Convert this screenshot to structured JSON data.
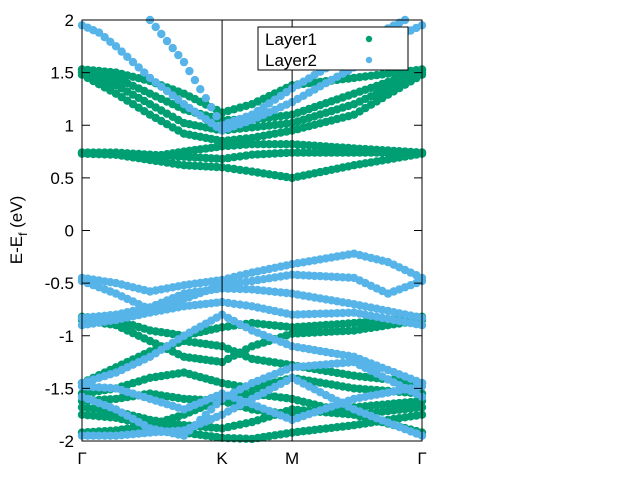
{
  "chart_data": {
    "type": "scatter",
    "title": "",
    "ylabel": "E-E",
    "ylabel_sub": "f",
    "ylabel_unit": " (eV)",
    "ylim": [
      -2,
      2
    ],
    "yticks": [
      {
        "v": 2,
        "label": "2"
      },
      {
        "v": 1.5,
        "label": "1.5"
      },
      {
        "v": 1,
        "label": "1"
      },
      {
        "v": 0.5,
        "label": "0.5"
      },
      {
        "v": 0,
        "label": "0"
      },
      {
        "v": -0.5,
        "label": "-0.5"
      },
      {
        "v": -1,
        "label": "-1"
      },
      {
        "v": -1.5,
        "label": "-1.5"
      },
      {
        "v": -2,
        "label": "-2"
      }
    ],
    "kpoints": [
      {
        "pos": 0.0,
        "label": "Γ"
      },
      {
        "pos": 0.412,
        "label": "K"
      },
      {
        "pos": 0.618,
        "label": "M"
      },
      {
        "pos": 1.0,
        "label": "Γ"
      }
    ],
    "legend": {
      "position": "top-right"
    },
    "series": [
      {
        "name": "Layer1",
        "color": "#009e73",
        "bands": [
          [
            [
              0.0,
              1.53
            ],
            [
              0.1,
              1.5
            ],
            [
              0.2,
              1.42
            ],
            [
              0.3,
              1.3
            ],
            [
              0.412,
              1.12
            ],
            [
              0.5,
              1.2
            ],
            [
              0.618,
              1.38
            ],
            [
              0.8,
              1.45
            ],
            [
              1.0,
              1.53
            ]
          ],
          [
            [
              0.0,
              1.52
            ],
            [
              0.1,
              1.45
            ],
            [
              0.2,
              1.3
            ],
            [
              0.3,
              1.15
            ],
            [
              0.412,
              1.05
            ],
            [
              0.5,
              1.05
            ],
            [
              0.618,
              1.1
            ],
            [
              0.8,
              1.3
            ],
            [
              1.0,
              1.52
            ]
          ],
          [
            [
              0.0,
              1.5
            ],
            [
              0.1,
              1.38
            ],
            [
              0.2,
              1.2
            ],
            [
              0.3,
              1.02
            ],
            [
              0.412,
              0.95
            ],
            [
              0.5,
              0.98
            ],
            [
              0.618,
              1.02
            ],
            [
              0.8,
              1.2
            ],
            [
              1.0,
              1.5
            ]
          ],
          [
            [
              0.0,
              1.48
            ],
            [
              0.1,
              1.3
            ],
            [
              0.2,
              1.1
            ],
            [
              0.3,
              0.92
            ],
            [
              0.412,
              0.85
            ],
            [
              0.5,
              0.88
            ],
            [
              0.618,
              0.95
            ],
            [
              0.8,
              1.1
            ],
            [
              1.0,
              1.48
            ]
          ],
          [
            [
              0.0,
              0.74
            ],
            [
              0.1,
              0.74
            ],
            [
              0.2,
              0.72
            ],
            [
              0.3,
              0.7
            ],
            [
              0.412,
              0.68
            ],
            [
              0.5,
              0.72
            ],
            [
              0.618,
              0.74
            ],
            [
              0.8,
              0.74
            ],
            [
              1.0,
              0.74
            ]
          ],
          [
            [
              0.0,
              0.73
            ],
            [
              0.1,
              0.72
            ],
            [
              0.2,
              0.67
            ],
            [
              0.3,
              0.62
            ],
            [
              0.412,
              0.6
            ],
            [
              0.5,
              0.56
            ],
            [
              0.618,
              0.5
            ],
            [
              0.8,
              0.62
            ],
            [
              1.0,
              0.73
            ]
          ],
          [
            [
              0.0,
              0.74
            ],
            [
              0.1,
              0.72
            ],
            [
              0.2,
              0.7
            ],
            [
              0.3,
              0.75
            ],
            [
              0.412,
              0.8
            ],
            [
              0.5,
              0.82
            ],
            [
              0.618,
              0.82
            ],
            [
              0.8,
              0.78
            ],
            [
              1.0,
              0.74
            ]
          ],
          [
            [
              0.0,
              -0.82
            ],
            [
              0.1,
              -0.85
            ],
            [
              0.2,
              -0.95
            ],
            [
              0.3,
              -1.0
            ],
            [
              0.412,
              -0.92
            ],
            [
              0.5,
              -0.88
            ],
            [
              0.618,
              -0.92
            ],
            [
              0.8,
              -0.88
            ],
            [
              1.0,
              -0.82
            ]
          ],
          [
            [
              0.0,
              -0.85
            ],
            [
              0.1,
              -0.9
            ],
            [
              0.2,
              -1.05
            ],
            [
              0.3,
              -1.2
            ],
            [
              0.412,
              -1.25
            ],
            [
              0.5,
              -1.1
            ],
            [
              0.618,
              -0.98
            ],
            [
              0.8,
              -0.95
            ],
            [
              1.0,
              -0.85
            ]
          ],
          [
            [
              0.0,
              -1.45
            ],
            [
              0.1,
              -1.3
            ],
            [
              0.2,
              -1.15
            ],
            [
              0.3,
              -1.05
            ],
            [
              0.412,
              -1.1
            ],
            [
              0.5,
              -1.22
            ],
            [
              0.618,
              -1.28
            ],
            [
              0.8,
              -1.38
            ],
            [
              1.0,
              -1.45
            ]
          ],
          [
            [
              0.0,
              -1.55
            ],
            [
              0.1,
              -1.5
            ],
            [
              0.2,
              -1.4
            ],
            [
              0.3,
              -1.35
            ],
            [
              0.412,
              -1.45
            ],
            [
              0.5,
              -1.5
            ],
            [
              0.618,
              -1.4
            ],
            [
              0.8,
              -1.5
            ],
            [
              1.0,
              -1.55
            ]
          ],
          [
            [
              0.0,
              -1.62
            ],
            [
              0.1,
              -1.6
            ],
            [
              0.2,
              -1.55
            ],
            [
              0.3,
              -1.6
            ],
            [
              0.412,
              -1.62
            ],
            [
              0.5,
              -1.7
            ],
            [
              0.618,
              -1.75
            ],
            [
              0.8,
              -1.68
            ],
            [
              1.0,
              -1.62
            ]
          ],
          [
            [
              0.0,
              -1.68
            ],
            [
              0.1,
              -1.72
            ],
            [
              0.2,
              -1.8
            ],
            [
              0.3,
              -1.85
            ],
            [
              0.412,
              -1.88
            ],
            [
              0.5,
              -1.82
            ],
            [
              0.618,
              -1.7
            ],
            [
              0.8,
              -1.75
            ],
            [
              1.0,
              -1.68
            ]
          ],
          [
            [
              0.0,
              -1.75
            ],
            [
              0.1,
              -1.78
            ],
            [
              0.2,
              -1.85
            ],
            [
              0.3,
              -1.92
            ],
            [
              0.412,
              -1.97
            ],
            [
              0.5,
              -1.98
            ],
            [
              0.618,
              -1.92
            ],
            [
              0.8,
              -1.85
            ],
            [
              1.0,
              -1.75
            ]
          ],
          [
            [
              0.0,
              -1.92
            ],
            [
              0.1,
              -1.9
            ],
            [
              0.2,
              -1.85
            ],
            [
              0.3,
              -1.75
            ],
            [
              0.412,
              -1.6
            ],
            [
              0.5,
              -1.55
            ],
            [
              0.618,
              -1.6
            ],
            [
              0.8,
              -1.75
            ],
            [
              1.0,
              -1.92
            ]
          ]
        ]
      },
      {
        "name": "Layer2",
        "color": "#56b4e9",
        "bands": [
          [
            [
              0.0,
              1.95
            ],
            [
              0.05,
              1.88
            ],
            [
              0.1,
              1.75
            ],
            [
              0.2,
              1.45
            ],
            [
              0.3,
              1.2
            ],
            [
              0.412,
              0.95
            ],
            [
              0.5,
              1.05
            ],
            [
              0.618,
              1.22
            ],
            [
              0.8,
              1.55
            ],
            [
              0.9,
              1.8
            ],
            [
              1.0,
              1.95
            ]
          ],
          [
            [
              0.2,
              2.0
            ],
            [
              0.3,
              1.6
            ],
            [
              0.412,
              1.0
            ],
            [
              0.5,
              1.1
            ],
            [
              0.618,
              1.35
            ],
            [
              0.8,
              1.7
            ],
            [
              0.9,
              1.92
            ],
            [
              0.95,
              2.0
            ]
          ],
          [
            [
              0.0,
              -0.45
            ],
            [
              0.1,
              -0.5
            ],
            [
              0.2,
              -0.58
            ],
            [
              0.3,
              -0.52
            ],
            [
              0.412,
              -0.47
            ],
            [
              0.5,
              -0.4
            ],
            [
              0.618,
              -0.32
            ],
            [
              0.8,
              -0.22
            ],
            [
              0.9,
              -0.3
            ],
            [
              1.0,
              -0.45
            ]
          ],
          [
            [
              0.0,
              -0.48
            ],
            [
              0.1,
              -0.6
            ],
            [
              0.2,
              -0.75
            ],
            [
              0.3,
              -0.65
            ],
            [
              0.412,
              -0.52
            ],
            [
              0.5,
              -0.48
            ],
            [
              0.618,
              -0.42
            ],
            [
              0.8,
              -0.45
            ],
            [
              0.9,
              -0.6
            ],
            [
              1.0,
              -0.48
            ]
          ],
          [
            [
              0.0,
              -0.83
            ],
            [
              0.1,
              -0.8
            ],
            [
              0.2,
              -0.73
            ],
            [
              0.3,
              -0.6
            ],
            [
              0.412,
              -0.55
            ],
            [
              0.5,
              -0.56
            ],
            [
              0.618,
              -0.6
            ],
            [
              0.8,
              -0.7
            ],
            [
              1.0,
              -0.83
            ]
          ],
          [
            [
              0.0,
              -0.9
            ],
            [
              0.1,
              -0.85
            ],
            [
              0.2,
              -0.78
            ],
            [
              0.3,
              -0.72
            ],
            [
              0.412,
              -0.68
            ],
            [
              0.5,
              -0.72
            ],
            [
              0.618,
              -0.8
            ],
            [
              0.8,
              -0.78
            ],
            [
              1.0,
              -0.9
            ]
          ],
          [
            [
              0.0,
              -1.45
            ],
            [
              0.1,
              -1.35
            ],
            [
              0.2,
              -1.2
            ],
            [
              0.3,
              -1.0
            ],
            [
              0.412,
              -0.8
            ],
            [
              0.5,
              -0.95
            ],
            [
              0.618,
              -1.1
            ],
            [
              0.8,
              -1.2
            ],
            [
              1.0,
              -1.45
            ]
          ],
          [
            [
              0.0,
              -1.48
            ],
            [
              0.1,
              -1.5
            ],
            [
              0.2,
              -1.6
            ],
            [
              0.3,
              -1.7
            ],
            [
              0.412,
              -1.55
            ],
            [
              0.5,
              -1.65
            ],
            [
              0.618,
              -1.8
            ],
            [
              0.8,
              -1.6
            ],
            [
              1.0,
              -1.48
            ]
          ],
          [
            [
              0.0,
              -1.95
            ],
            [
              0.1,
              -1.95
            ],
            [
              0.2,
              -1.92
            ],
            [
              0.3,
              -1.9
            ],
            [
              0.412,
              -1.75
            ],
            [
              0.5,
              -1.6
            ],
            [
              0.618,
              -1.4
            ],
            [
              0.8,
              -1.7
            ],
            [
              1.0,
              -1.95
            ]
          ],
          [
            [
              0.0,
              -1.58
            ],
            [
              0.1,
              -1.7
            ],
            [
              0.2,
              -1.88
            ],
            [
              0.3,
              -1.95
            ],
            [
              0.412,
              -1.6
            ],
            [
              0.5,
              -1.45
            ],
            [
              0.618,
              -1.3
            ],
            [
              0.8,
              -1.25
            ],
            [
              1.0,
              -1.58
            ]
          ]
        ]
      }
    ]
  }
}
